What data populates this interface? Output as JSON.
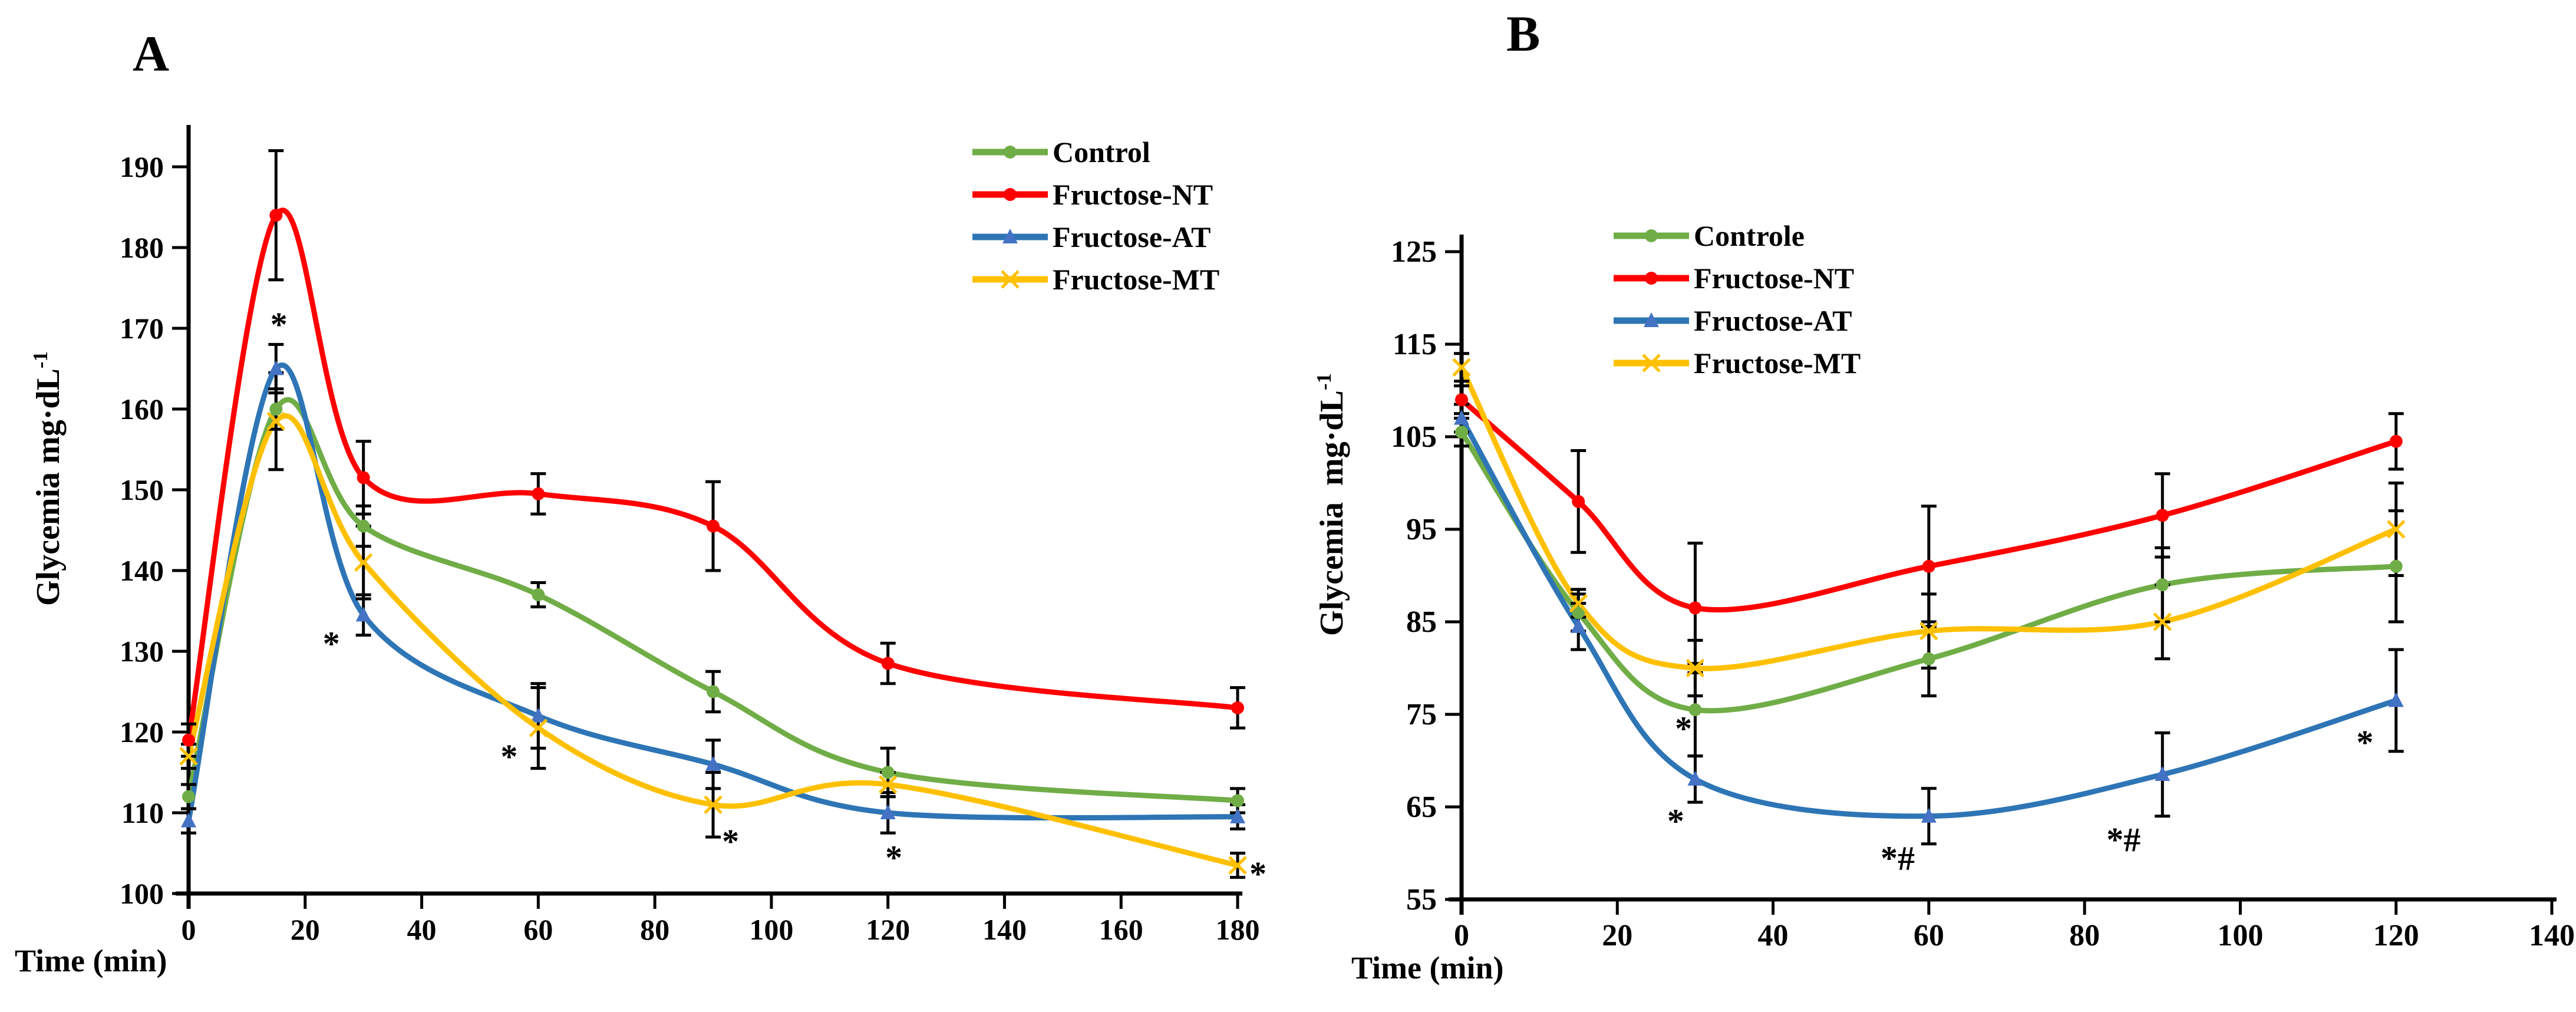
{
  "chart_data": [
    {
      "panel_label": "A",
      "type": "line",
      "title": "",
      "xlabel": "Time (min)",
      "ylabel": "Glycemia mg·dL",
      "ylabel_sup": "-1",
      "xlim": [
        0,
        180
      ],
      "ylim": [
        100,
        190
      ],
      "x_ticks": [
        0,
        20,
        40,
        60,
        80,
        100,
        120,
        140,
        160,
        180
      ],
      "y_ticks": [
        100,
        110,
        120,
        130,
        140,
        150,
        160,
        170,
        180,
        190
      ],
      "grid": false,
      "legend_position": "top-right",
      "x": [
        0,
        15,
        30,
        60,
        90,
        120,
        180
      ],
      "series": [
        {
          "name": "Control",
          "color": "#70AD47",
          "marker": "circle",
          "marker_color": "#70AD47",
          "values": [
            112,
            160,
            145.5,
            137,
            125,
            115,
            111.5
          ],
          "errors": [
            1.5,
            2.5,
            2.5,
            1.5,
            2.5,
            3,
            1.5
          ]
        },
        {
          "name": "Fructose-NT",
          "color": "#FF0000",
          "marker": "circle",
          "marker_color": "#FF0000",
          "values": [
            119,
            184,
            151.5,
            149.5,
            145.5,
            128.5,
            123
          ],
          "errors": [
            2,
            8,
            4.5,
            2.5,
            5.5,
            2.5,
            2.5
          ]
        },
        {
          "name": "Fructose-AT",
          "color": "#2E75B6",
          "marker": "triangle",
          "marker_color": "#4472C4",
          "values": [
            109,
            165,
            134.5,
            122,
            116,
            110,
            109.5
          ],
          "errors": [
            1.5,
            3,
            2.5,
            4,
            3,
            2.5,
            1.5
          ]
        },
        {
          "name": "Fructose-MT",
          "color": "#FFC000",
          "marker": "x",
          "marker_color": "#FFC000",
          "values": [
            117,
            158.5,
            141,
            120.5,
            111,
            113.5,
            103.5
          ],
          "errors": [
            1.5,
            6,
            4.5,
            5,
            4,
            1.5,
            1.5
          ]
        }
      ],
      "annotations": [
        {
          "x": 15.5,
          "y": 170.5,
          "text": "*"
        },
        {
          "x": 24.5,
          "y": 131,
          "text": "*"
        },
        {
          "x": 55,
          "y": 117,
          "text": "*"
        },
        {
          "x": 93,
          "y": 106.5,
          "text": "*"
        },
        {
          "x": 121,
          "y": 104.5,
          "text": "*"
        },
        {
          "x": 183.5,
          "y": 102.5,
          "text": "*"
        }
      ]
    },
    {
      "panel_label": "B",
      "type": "line",
      "title": "",
      "xlabel": "Time (min)",
      "ylabel": "Glycemia  mg·dL",
      "ylabel_sup": "-1",
      "xlim": [
        0,
        140
      ],
      "ylim": [
        55,
        125
      ],
      "x_ticks": [
        0,
        20,
        40,
        60,
        80,
        100,
        120,
        140
      ],
      "y_ticks": [
        55,
        65,
        75,
        85,
        95,
        105,
        115,
        125
      ],
      "grid": false,
      "legend_position": "top-left",
      "x": [
        0,
        15,
        30,
        60,
        90,
        120
      ],
      "series": [
        {
          "name": "Controle",
          "color": "#70AD47",
          "marker": "circle",
          "marker_color": "#70AD47",
          "values": [
            105.5,
            86,
            75.5,
            81,
            89,
            91
          ],
          "errors": [
            1.5,
            2,
            5,
            4,
            4,
            6
          ]
        },
        {
          "name": "Fructose-NT",
          "color": "#FF0000",
          "marker": "circle",
          "marker_color": "#FF0000",
          "values": [
            109,
            98,
            86.5,
            91,
            96.5,
            104.5
          ],
          "errors": [
            1.5,
            5.5,
            7,
            6.5,
            4.5,
            3
          ]
        },
        {
          "name": "Fructose-AT",
          "color": "#2E75B6",
          "marker": "triangle",
          "marker_color": "#4472C4",
          "values": [
            107,
            84.5,
            68,
            64,
            68.5,
            76.5
          ],
          "errors": [
            1.5,
            2.5,
            2.5,
            3,
            4.5,
            5.5
          ]
        },
        {
          "name": "Fructose-MT",
          "color": "#FFC000",
          "marker": "x",
          "marker_color": "#FFC000",
          "values": [
            112.5,
            87,
            80,
            84,
            85,
            95
          ],
          "errors": [
            1.5,
            1.5,
            3,
            4,
            4,
            5
          ]
        }
      ],
      "annotations": [
        {
          "x": 28.5,
          "y": 73.5,
          "text": "*"
        },
        {
          "x": 27.5,
          "y": 63.5,
          "text": "*"
        },
        {
          "x": 56,
          "y": 59.5,
          "text": "*#"
        },
        {
          "x": 85,
          "y": 61.5,
          "text": "*#"
        },
        {
          "x": 116,
          "y": 72,
          "text": "*"
        }
      ]
    }
  ]
}
